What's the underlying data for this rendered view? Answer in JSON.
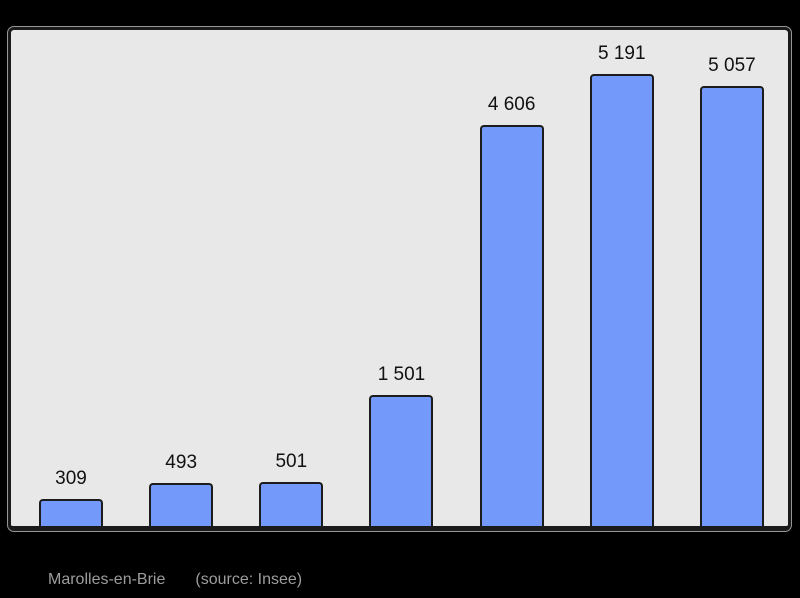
{
  "chart_data": {
    "type": "bar",
    "values": [
      309,
      493,
      501,
      1501,
      4606,
      5191,
      5057
    ],
    "value_labels": [
      "309",
      "493",
      "501",
      "1 501",
      "4 606",
      "5 191",
      "5 057"
    ],
    "title": "",
    "xlabel": "",
    "ylabel": "",
    "ylim": [
      0,
      5700
    ],
    "grid": false,
    "legend": false,
    "bar_color": "#7399fa",
    "bar_border_color": "#1c1c1c",
    "plot_background": "#e8e8e8",
    "frame_border_color": "#1a1a1a",
    "value_label_color": "#111111"
  },
  "caption": {
    "title": "Marolles-en-Brie",
    "source": "(source: Insee)",
    "color": "#9d9d9d"
  },
  "page": {
    "background": "#000000"
  }
}
